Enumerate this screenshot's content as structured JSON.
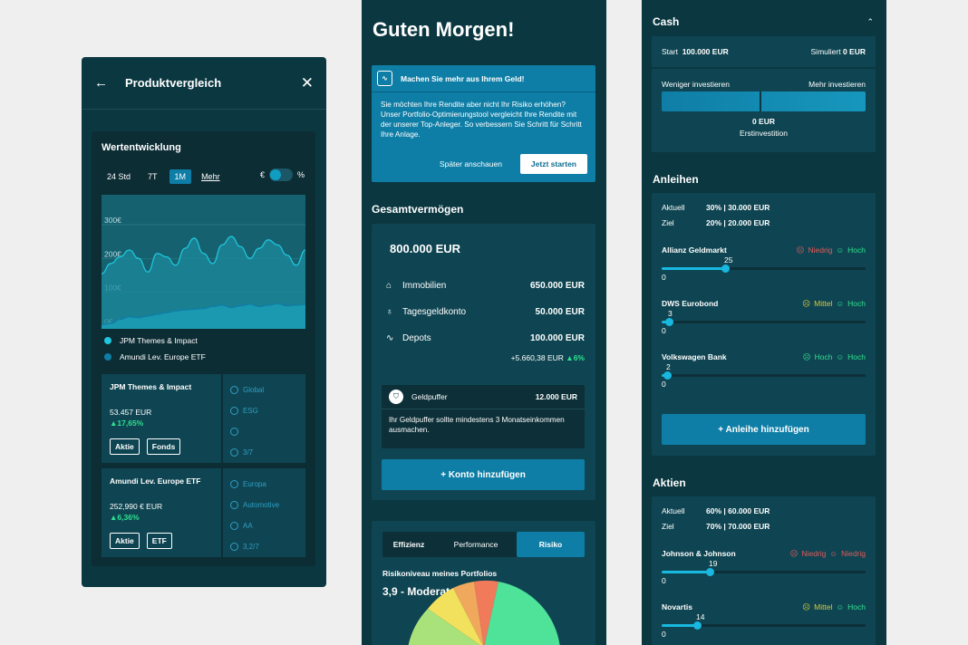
{
  "screen1": {
    "title": "Produktvergleich",
    "back_icon": "←",
    "close_icon": "✕",
    "card_title": "Wertentwicklung",
    "periods": [
      "24 Std",
      "7T",
      "1M"
    ],
    "more": "Mehr",
    "toggle_left": "€",
    "toggle_right": "%",
    "chart_data": {
      "type": "area",
      "yticks": [
        "300€",
        "200€",
        "100€",
        "0€"
      ],
      "ylim": [
        0,
        300
      ],
      "series": [
        {
          "name": "JPM Themes & Impact",
          "color": "#1fc6dc",
          "values": [
            155,
            185,
            205,
            225,
            200,
            160,
            215,
            205,
            180,
            230,
            260,
            215,
            185,
            240,
            265,
            235,
            200,
            230,
            255,
            240,
            210,
            180,
            225
          ]
        },
        {
          "name": "Amundi Lev. Europe ETF",
          "color": "#0f7ea6",
          "values": [
            5,
            8,
            20,
            28,
            25,
            30,
            35,
            40,
            45,
            48,
            50,
            52,
            58,
            62,
            55,
            60,
            65,
            58,
            62,
            66,
            60,
            62,
            64
          ]
        }
      ]
    },
    "legend": [
      {
        "label": "JPM Themes & Impact",
        "color": "#1fc6dc"
      },
      {
        "label": "Amundi Lev. Europe ETF",
        "color": "#0f7ea6"
      }
    ],
    "funds": [
      {
        "name": "JPM Themes & Impact",
        "value": "53.457 EUR",
        "change": "▲17,65%",
        "tags": [
          "Aktie",
          "Fonds"
        ],
        "props": [
          "Global",
          "ESG",
          "",
          "3/7"
        ]
      },
      {
        "name": "Amundi Lev. Europe ETF",
        "value": "252,990 € EUR",
        "change": "▲6,36%",
        "tags": [
          "Aktie",
          "ETF"
        ],
        "props": [
          "Europa",
          "Automotive",
          "AA",
          "3,2/7"
        ]
      }
    ]
  },
  "screen2": {
    "greeting": "Guten Morgen!",
    "promo_title": "Machen Sie mehr aus Ihrem Geld!",
    "promo_text": "Sie möchten Ihre Rendite aber nicht Ihr Risiko erhöhen? Unser Portfolio-Optimierungstool vergleicht Ihre Rendite mit der unserer Top-Anleger. So verbessern Sie Schritt für Schritt Ihre Anlage.",
    "promo_later": "Später anschauen",
    "promo_start": "Jetzt starten",
    "section_title": "Gesamtvermögen",
    "total": "800.000 EUR",
    "assets": [
      {
        "icon": "⌂",
        "label": "Immobilien",
        "amount": "650.000 EUR"
      },
      {
        "icon": "♁",
        "label": "Tagesgeldkonto",
        "amount": "50.000 EUR"
      },
      {
        "icon": "∿",
        "label": "Depots",
        "amount": "100.000 EUR"
      }
    ],
    "gain_abs": "+5.660,38 EUR",
    "gain_pct": "▲6%",
    "buffer_label": "Geldpuffer",
    "buffer_amount": "12.000 EUR",
    "buffer_text": "Ihr Geldpuffer sollte mindestens 3 Monatseinkommen ausmachen.",
    "add_account": "+  Konto hinzufügen",
    "tabs": [
      "Effizienz",
      "Performance",
      "Risiko"
    ],
    "risk_label": "Risikoniveau meines Portfolios",
    "risk_value": "3,9 - Moderat"
  },
  "screen3": {
    "cash_title": "Cash",
    "cash_start_label": "Start",
    "cash_start": "100.000 EUR",
    "cash_sim_label": "Simuliert",
    "cash_sim": "0 EUR",
    "cash_less": "Weniger investieren",
    "cash_more": "Mehr investieren",
    "cash_amount": "0 EUR",
    "cash_sub": "Erstinvestition",
    "bonds_title": "Anleihen",
    "bonds_current": "30% | 30.000 EUR",
    "bonds_target": "20% | 20.000 EUR",
    "label_current": "Aktuell",
    "label_target": "Ziel",
    "bonds": [
      {
        "name": "Allianz Geldmarkt",
        "r1": "Niedrig",
        "r1c": "low",
        "r2": "Hoch",
        "r2c": "high",
        "value": 25,
        "valtxt": "25",
        "min": "0"
      },
      {
        "name": "DWS Eurobond",
        "r1": "Mittel",
        "r1c": "mid",
        "r2": "Hoch",
        "r2c": "high",
        "value": 3,
        "valtxt": "3",
        "min": "0"
      },
      {
        "name": "Volkswagen Bank",
        "r1": "Hoch",
        "r1c": "high",
        "r2": "Hoch",
        "r2c": "high",
        "value": 2,
        "valtxt": "2",
        "min": "0"
      }
    ],
    "add_bond": "+  Anleihe hinzufügen",
    "stocks_title": "Aktien",
    "stocks_current": "60% | 60.000 EUR",
    "stocks_target": "70% | 70.000 EUR",
    "stocks": [
      {
        "name": "Johnson & Johnson",
        "r1": "Niedrig",
        "r1c": "low",
        "r2": "Niedrig",
        "r2c": "low",
        "value": 19,
        "valtxt": "19",
        "min": "0"
      },
      {
        "name": "Novartis",
        "r1": "Mittel",
        "r1c": "mid",
        "r2": "Hoch",
        "r2c": "high",
        "value": 14,
        "valtxt": "14",
        "min": "0"
      }
    ]
  }
}
